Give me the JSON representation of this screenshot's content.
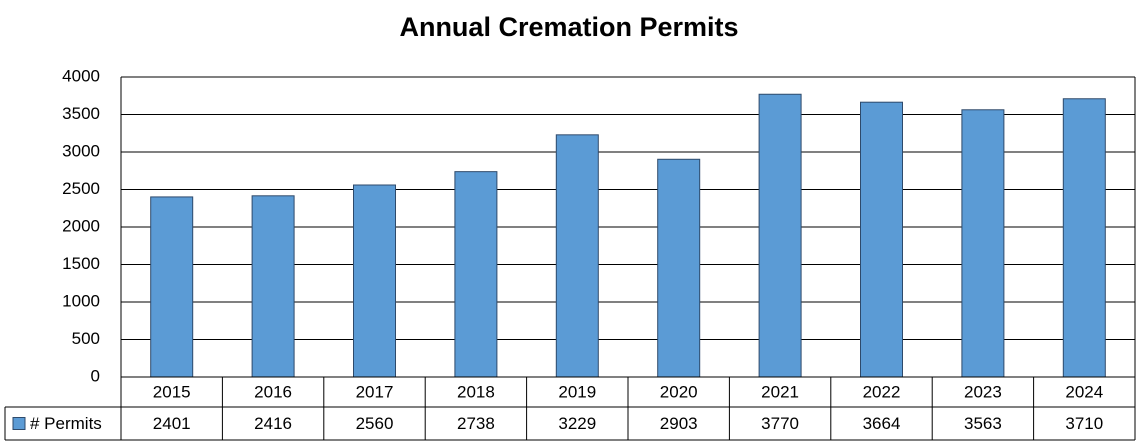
{
  "chart_data": {
    "type": "bar",
    "title": "Annual Cremation Permits",
    "categories": [
      "2015",
      "2016",
      "2017",
      "2018",
      "2019",
      "2020",
      "2021",
      "2022",
      "2023",
      "2024"
    ],
    "series": [
      {
        "name": "# Permits",
        "color": "#5b9bd5",
        "values": [
          2401,
          2416,
          2560,
          2738,
          3229,
          2903,
          3770,
          3664,
          3563,
          3710
        ]
      }
    ],
    "ylim": [
      0,
      4000
    ],
    "yticks": [
      0,
      500,
      1000,
      1500,
      2000,
      2500,
      3000,
      3500,
      4000
    ],
    "grid": true,
    "data_table": true
  }
}
